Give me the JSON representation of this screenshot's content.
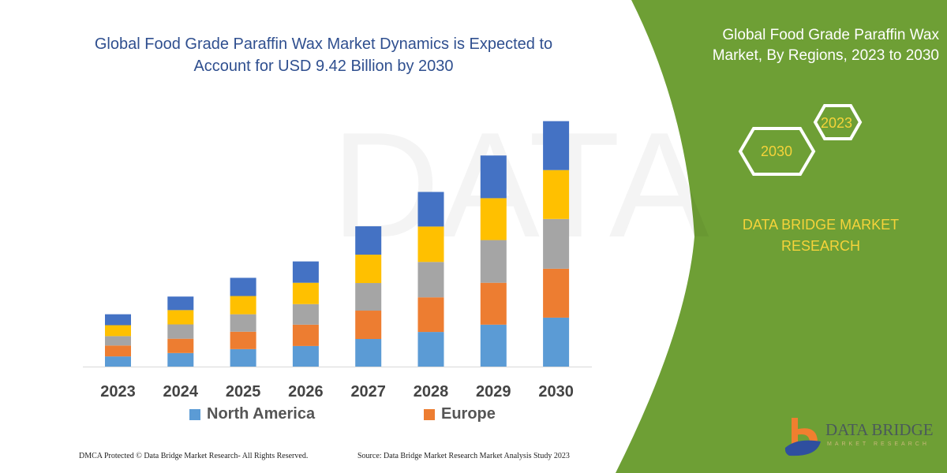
{
  "title": "Global Food Grade Paraffin Wax Market Dynamics is Expected to Account for USD 9.42 Billion by 2030",
  "right_panel": {
    "title": "Global Food Grade Paraffin Wax Market, By Regions, 2023 to 2030",
    "hex_years": [
      "2023",
      "2030"
    ],
    "brand": "DATA BRIDGE MARKET RESEARCH",
    "logo_text": "DATA BRIDGE",
    "logo_sub": "MARKET RESEARCH",
    "green": "#6e9f35",
    "accent": "#f5d33a"
  },
  "footer": {
    "left": "DMCA Protected © Data Bridge Market Research-  All Rights Reserved.",
    "right": "Source: Data Bridge Market Research  Market Analysis Study 2023"
  },
  "chart_data": {
    "type": "bar",
    "stacked": true,
    "title": "Global Food Grade Paraffin Wax Market Dynamics is Expected to Account for USD 9.42 Billion by 2030",
    "categories": [
      "2023",
      "2024",
      "2025",
      "2026",
      "2027",
      "2028",
      "2029",
      "2030"
    ],
    "series": [
      {
        "name": "North America",
        "color": "#5b9bd5",
        "values": [
          0.39,
          0.52,
          0.67,
          0.79,
          1.06,
          1.33,
          1.61,
          1.88
        ]
      },
      {
        "name": "Europe",
        "color": "#ed7d31",
        "values": [
          0.42,
          0.55,
          0.67,
          0.82,
          1.09,
          1.33,
          1.61,
          1.88
        ]
      },
      {
        "color": "#a5a5a5",
        "values": [
          0.36,
          0.55,
          0.67,
          0.79,
          1.06,
          1.36,
          1.64,
          1.91
        ]
      },
      {
        "color": "#ffc000",
        "values": [
          0.42,
          0.55,
          0.7,
          0.82,
          1.09,
          1.36,
          1.61,
          1.88
        ]
      },
      {
        "color": "#4472c4",
        "values": [
          0.42,
          0.52,
          0.7,
          0.82,
          1.09,
          1.33,
          1.64,
          1.88
        ]
      }
    ],
    "y_axis_visible": false,
    "grid": false,
    "legend_position": "bottom",
    "legend_entries": [
      "North America",
      "Europe"
    ]
  }
}
